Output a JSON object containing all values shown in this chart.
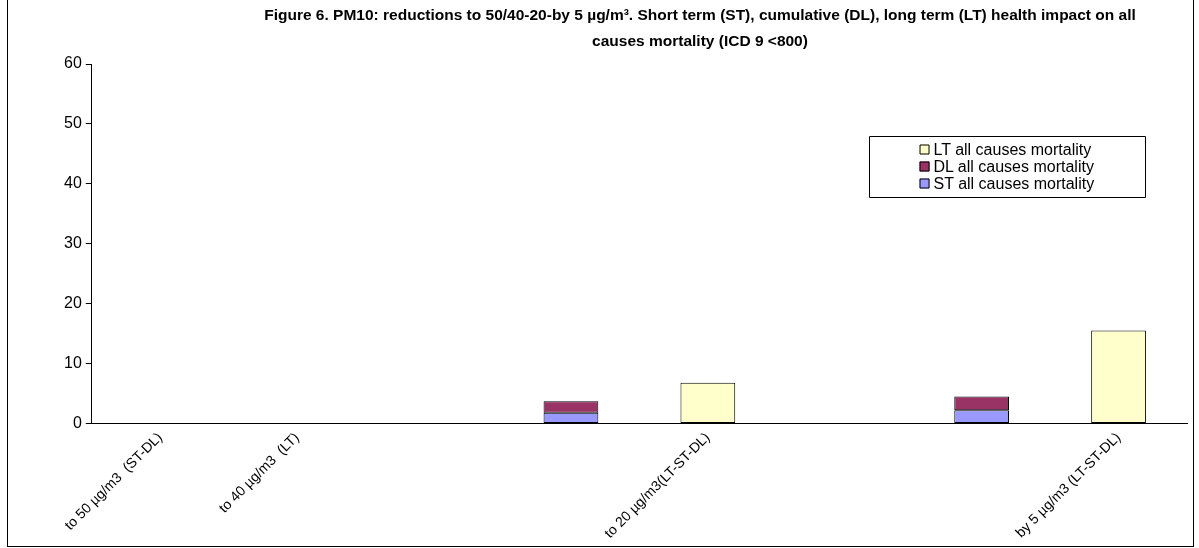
{
  "chart_data": {
    "type": "bar",
    "title": "Figure 6. PM10: reductions to 50/40-20-by 5 µg/m³. Short term (ST), cumulative (DL), long term (LT) health impact on all causes mortality (ICD 9 <800)",
    "categories": [
      "to 50 µg/m3  (ST-DL)",
      "to 40 µg/m3  (LT)",
      null,
      null,
      "to 20 µg/m3(LT-ST-DL)",
      null,
      null,
      "by 5 µg/m3 (LT-ST-DL)"
    ],
    "stacked": true,
    "series": [
      {
        "name": "ST all causes mortality",
        "color": "#9999ff",
        "values": [
          null,
          null,
          null,
          1.8,
          null,
          null,
          2.2,
          null
        ]
      },
      {
        "name": "DL all causes mortality",
        "color": "#993366",
        "values": [
          null,
          null,
          null,
          1.9,
          null,
          null,
          2.3,
          null
        ]
      },
      {
        "name": "LT all causes mortality",
        "color": "#ffffcc",
        "values": [
          null,
          null,
          null,
          null,
          6.8,
          null,
          null,
          15.5
        ]
      }
    ],
    "ylim": [
      0,
      60
    ],
    "yticks": [
      0,
      10,
      20,
      30,
      40,
      50,
      60
    ],
    "grid": false,
    "legend": "top right"
  }
}
